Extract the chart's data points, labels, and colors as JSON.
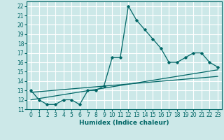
{
  "xlabel": "Humidex (Indice chaleur)",
  "bg_color": "#cce8e8",
  "grid_color": "#ffffff",
  "line_color": "#006666",
  "xlim": [
    -0.5,
    23.5
  ],
  "ylim": [
    11,
    22.5
  ],
  "xticks": [
    0,
    1,
    2,
    3,
    4,
    5,
    6,
    7,
    8,
    9,
    10,
    11,
    12,
    13,
    14,
    15,
    16,
    17,
    18,
    19,
    20,
    21,
    22,
    23
  ],
  "yticks": [
    11,
    12,
    13,
    14,
    15,
    16,
    17,
    18,
    19,
    20,
    21,
    22
  ],
  "series1_x": [
    0,
    1,
    2,
    3,
    4,
    5,
    6,
    7,
    8,
    9,
    10,
    11,
    12,
    13,
    14,
    15,
    16,
    17,
    18,
    19,
    20,
    21,
    22,
    23
  ],
  "series1_y": [
    13,
    12,
    11.5,
    11.5,
    12,
    12,
    11.5,
    13,
    13,
    13.5,
    16.5,
    16.5,
    22,
    20.5,
    19.5,
    18.5,
    17.5,
    16,
    16,
    16.5,
    17,
    17,
    16,
    15.5
  ],
  "series2_x": [
    0,
    23
  ],
  "series2_y": [
    12.0,
    15.2
  ],
  "series3_x": [
    0,
    23
  ],
  "series3_y": [
    12.8,
    14.5
  ],
  "tick_fontsize": 5.5,
  "xlabel_fontsize": 6.5
}
